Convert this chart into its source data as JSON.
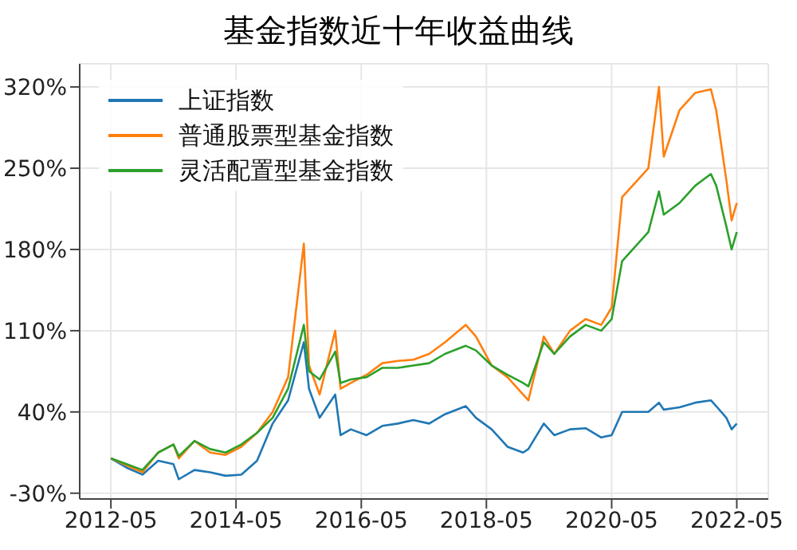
{
  "chart_data": {
    "type": "line",
    "title": "基金指数近十年收益曲线",
    "x": [
      "2012-05",
      "2012-08",
      "2012-11",
      "2013-02",
      "2013-05",
      "2013-06",
      "2013-09",
      "2013-12",
      "2014-03",
      "2014-06",
      "2014-09",
      "2014-12",
      "2015-03",
      "2015-06",
      "2015-07",
      "2015-09",
      "2015-12",
      "2016-01",
      "2016-03",
      "2016-06",
      "2016-09",
      "2016-12",
      "2017-03",
      "2017-06",
      "2017-09",
      "2018-01",
      "2018-03",
      "2018-06",
      "2018-09",
      "2018-12",
      "2019-01",
      "2019-04",
      "2019-06",
      "2019-09",
      "2019-12",
      "2020-03",
      "2020-05",
      "2020-07",
      "2020-12",
      "2021-02",
      "2021-03",
      "2021-06",
      "2021-09",
      "2021-12",
      "2022-01",
      "2022-03",
      "2022-04",
      "2022-05"
    ],
    "series": [
      {
        "name": "上证指数",
        "color": "#1f77b4",
        "values": [
          0,
          -8,
          -14,
          -2,
          -5,
          -18,
          -10,
          -12,
          -15,
          -14,
          -2,
          30,
          50,
          100,
          60,
          35,
          55,
          20,
          25,
          20,
          28,
          30,
          33,
          30,
          38,
          45,
          35,
          25,
          10,
          5,
          8,
          30,
          20,
          25,
          26,
          18,
          20,
          40,
          40,
          48,
          42,
          44,
          48,
          50,
          45,
          35,
          25,
          30
        ]
      },
      {
        "name": "普通股票型基金指数",
        "color": "#ff7f0e",
        "values": [
          0,
          -6,
          -12,
          5,
          12,
          0,
          15,
          5,
          3,
          10,
          22,
          40,
          70,
          185,
          80,
          55,
          110,
          60,
          65,
          72,
          82,
          84,
          85,
          90,
          100,
          115,
          105,
          80,
          70,
          55,
          50,
          105,
          90,
          110,
          120,
          115,
          130,
          225,
          250,
          320,
          260,
          300,
          315,
          318,
          300,
          240,
          205,
          220
        ]
      },
      {
        "name": "灵活配置型基金指数",
        "color": "#2ca02c",
        "values": [
          0,
          -5,
          -10,
          5,
          12,
          2,
          15,
          8,
          5,
          12,
          22,
          35,
          60,
          115,
          75,
          68,
          92,
          65,
          68,
          70,
          78,
          78,
          80,
          82,
          90,
          97,
          93,
          80,
          72,
          65,
          62,
          100,
          90,
          105,
          115,
          110,
          120,
          170,
          195,
          230,
          210,
          220,
          235,
          245,
          235,
          200,
          180,
          195
        ]
      }
    ],
    "xlim": [
      "2011-11",
      "2022-11"
    ],
    "xticks": [
      "2012-05",
      "2014-05",
      "2016-05",
      "2018-05",
      "2020-05",
      "2022-05"
    ],
    "ylim": [
      -35,
      340
    ],
    "yticks": [
      {
        "value": -30,
        "label": "-30%"
      },
      {
        "value": 40,
        "label": "40%"
      },
      {
        "value": 110,
        "label": "110%"
      },
      {
        "value": 180,
        "label": "180%"
      },
      {
        "value": 250,
        "label": "250%"
      },
      {
        "value": 320,
        "label": "320%"
      }
    ],
    "grid": true,
    "legend": "top left"
  }
}
